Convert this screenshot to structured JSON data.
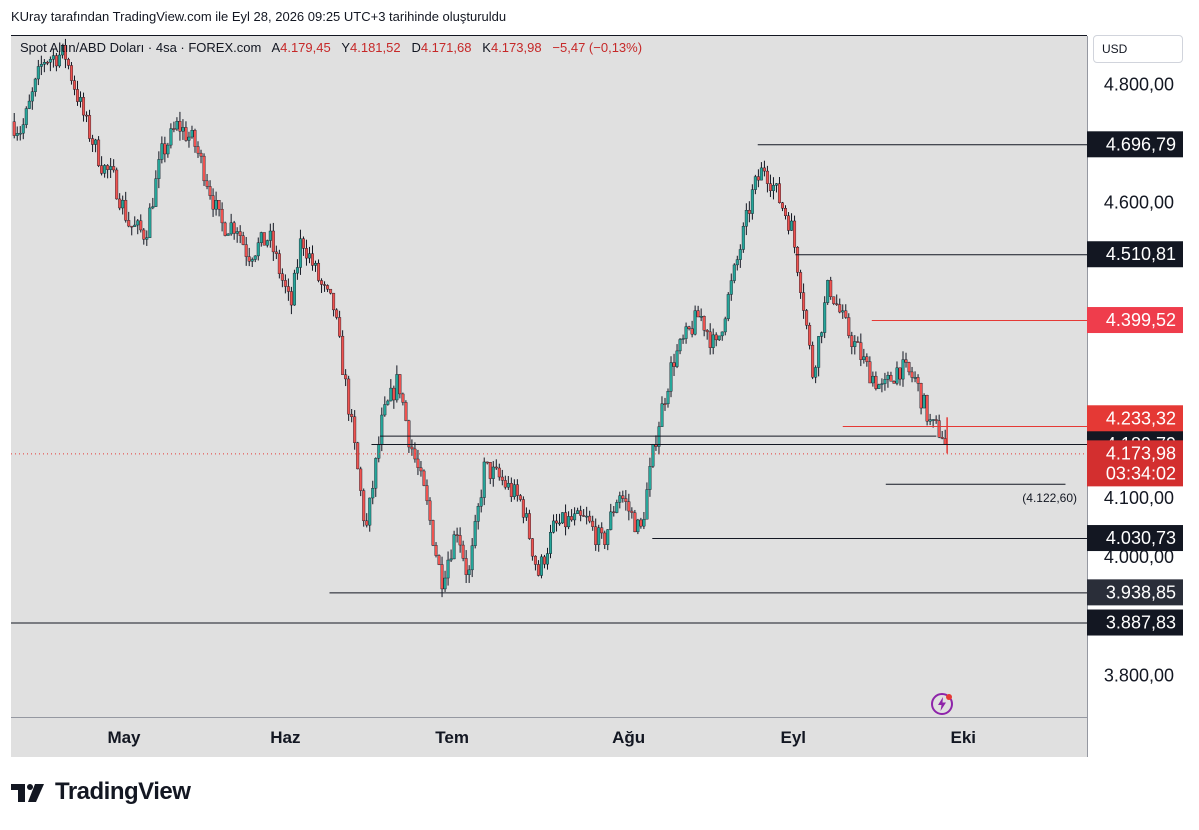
{
  "header": {
    "text": "KUray tarafından TradingView.com ile Eyl 28, 2026 09:25 UTC+3 tarihinde oluşturuldu"
  },
  "legend": {
    "symbol": "Spot Altın/ABD Doları · 4sa · FOREX.com",
    "open_label": "A",
    "open": "4.179,45",
    "high_label": "Y",
    "high": "4.181,52",
    "low_label": "D",
    "low": "4.171,68",
    "close_label": "K",
    "close": "4.173,98",
    "change": "−5,47 (−0,13%)"
  },
  "currency_button": "USD",
  "brand": {
    "name": "TradingView"
  },
  "colors": {
    "up": "#26a69a",
    "down": "#ef5350",
    "candle": "#131722",
    "red_line": "#e53935",
    "background": "#e0e0e0"
  },
  "chart_data": {
    "type": "candlestick",
    "symbol": "Spot Altın/ABD Doları",
    "interval": "4sa",
    "ylim": [
      3728,
      4880
    ],
    "y_ticks": [
      "4.800,00",
      "4.600,00",
      "4.100,00",
      "4.000,00",
      "3.800,00"
    ],
    "y_tick_values": [
      4800,
      4600,
      4100,
      4000,
      3800
    ],
    "x_ticks": [
      "May",
      "Haz",
      "Tem",
      "Ağu",
      "Eyl",
      "Eki"
    ],
    "x_tick_positions": [
      0.105,
      0.255,
      0.41,
      0.574,
      0.727,
      0.885
    ],
    "horizontal_levels": [
      {
        "value": 4696.79,
        "label": "4.696,79",
        "style": "black",
        "start": 0.694
      },
      {
        "value": 4510.81,
        "label": "4.510,81",
        "style": "black",
        "start": 0.729
      },
      {
        "value": 4399.52,
        "label": "4.399,52",
        "style": "red",
        "start": 0.8
      },
      {
        "value": 4220.27,
        "label": "4.220,27",
        "style": "red-thin",
        "start": 0.773
      },
      {
        "value": 4189.79,
        "label": "4.189,79",
        "style": "black",
        "start": 0.335
      },
      {
        "value": 4122.6,
        "label": "(4.122,60)",
        "style": "black-short",
        "start": 0.813
      },
      {
        "value": 4030.73,
        "label": "4.030,73",
        "style": "black",
        "start": 0.596
      },
      {
        "value": 3938.85,
        "label": "3.938,85",
        "style": "black",
        "start": 0.296
      },
      {
        "value": 3887.83,
        "label": "3.887,83",
        "style": "black",
        "start": 0.0
      }
    ],
    "extra_level": {
      "value": 4204,
      "start": 0.343,
      "end": 0.86
    },
    "price_labels": [
      {
        "value": 4233.32,
        "label": "4.233,32",
        "color": "#e53935"
      },
      {
        "value": 4173.98,
        "label": "4.173,98",
        "sub": "03:34:02",
        "color": "#d32f2f"
      }
    ],
    "last_price": 4173.98,
    "anchors": [
      [
        0.0,
        4735
      ],
      [
        0.01,
        4720
      ],
      [
        0.03,
        4840
      ],
      [
        0.05,
        4850
      ],
      [
        0.07,
        4730
      ],
      [
        0.085,
        4660
      ],
      [
        0.095,
        4640
      ],
      [
        0.11,
        4560
      ],
      [
        0.125,
        4545
      ],
      [
        0.14,
        4680
      ],
      [
        0.155,
        4730
      ],
      [
        0.17,
        4700
      ],
      [
        0.18,
        4650
      ],
      [
        0.195,
        4560
      ],
      [
        0.21,
        4560
      ],
      [
        0.22,
        4510
      ],
      [
        0.24,
        4540
      ],
      [
        0.26,
        4420
      ],
      [
        0.27,
        4540
      ],
      [
        0.29,
        4450
      ],
      [
        0.3,
        4420
      ],
      [
        0.315,
        4240
      ],
      [
        0.33,
        4040
      ],
      [
        0.345,
        4230
      ],
      [
        0.36,
        4300
      ],
      [
        0.37,
        4200
      ],
      [
        0.385,
        4100
      ],
      [
        0.4,
        3960
      ],
      [
        0.415,
        4050
      ],
      [
        0.425,
        3960
      ],
      [
        0.44,
        4150
      ],
      [
        0.455,
        4130
      ],
      [
        0.475,
        4090
      ],
      [
        0.49,
        3970
      ],
      [
        0.505,
        4050
      ],
      [
        0.52,
        4060
      ],
      [
        0.535,
        4060
      ],
      [
        0.55,
        4020
      ],
      [
        0.565,
        4110
      ],
      [
        0.585,
        4040
      ],
      [
        0.6,
        4210
      ],
      [
        0.615,
        4330
      ],
      [
        0.64,
        4410
      ],
      [
        0.655,
        4350
      ],
      [
        0.675,
        4500
      ],
      [
        0.69,
        4620
      ],
      [
        0.7,
        4660
      ],
      [
        0.71,
        4620
      ],
      [
        0.725,
        4560
      ],
      [
        0.735,
        4450
      ],
      [
        0.745,
        4310
      ],
      [
        0.76,
        4460
      ],
      [
        0.775,
        4390
      ],
      [
        0.795,
        4320
      ],
      [
        0.81,
        4280
      ],
      [
        0.825,
        4320
      ],
      [
        0.84,
        4300
      ],
      [
        0.855,
        4220
      ],
      [
        0.865,
        4210
      ],
      [
        0.87,
        4174
      ]
    ]
  }
}
